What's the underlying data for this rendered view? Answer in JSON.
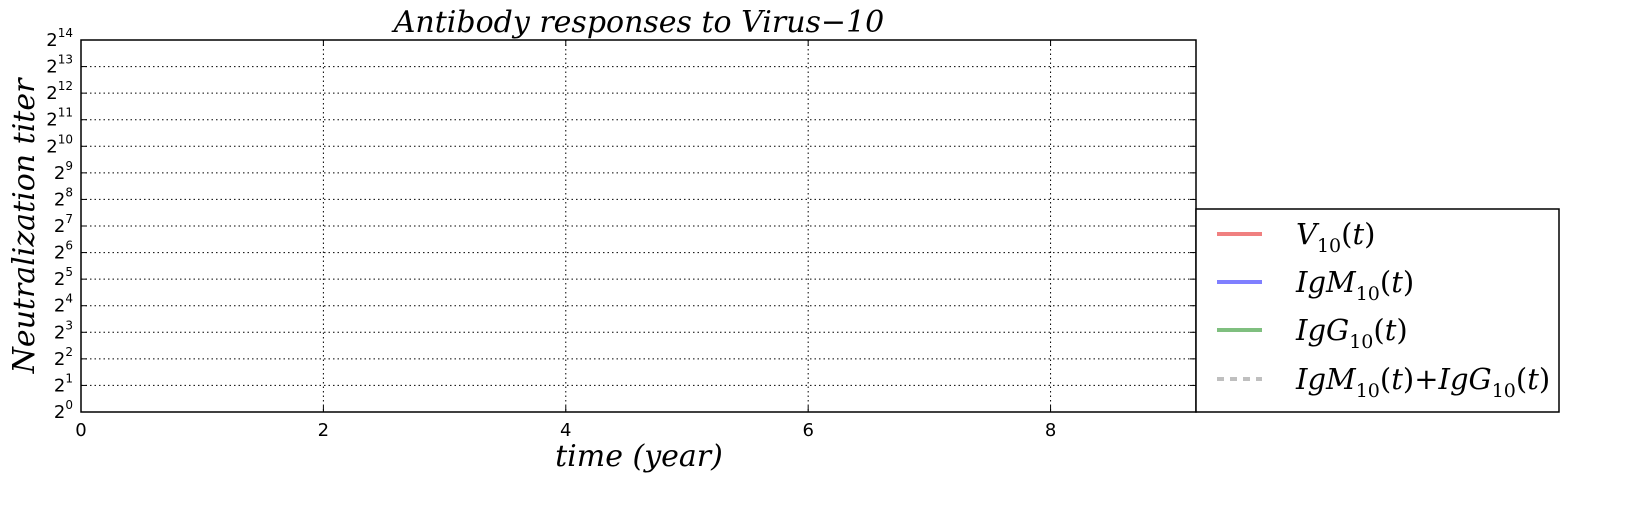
{
  "chart_data": {
    "type": "line",
    "title": "Antibody responses to Virus−10",
    "xlabel": "time (year)",
    "ylabel": "Neutralization  titer",
    "xlim": [
      0,
      9.2
    ],
    "ylim": [
      1,
      16384
    ],
    "y_scale": "log2",
    "x_ticks": [
      {
        "value": 0,
        "label": "0"
      },
      {
        "value": 2,
        "label": "2"
      },
      {
        "value": 4,
        "label": "4"
      },
      {
        "value": 6,
        "label": "6"
      },
      {
        "value": 8,
        "label": "8"
      }
    ],
    "y_ticks": [
      {
        "value": 1,
        "base": "2",
        "exp": "0"
      },
      {
        "value": 2,
        "base": "2",
        "exp": "1"
      },
      {
        "value": 4,
        "base": "2",
        "exp": "2"
      },
      {
        "value": 8,
        "base": "2",
        "exp": "3"
      },
      {
        "value": 16,
        "base": "2",
        "exp": "4"
      },
      {
        "value": 32,
        "base": "2",
        "exp": "5"
      },
      {
        "value": 64,
        "base": "2",
        "exp": "6"
      },
      {
        "value": 128,
        "base": "2",
        "exp": "7"
      },
      {
        "value": 256,
        "base": "2",
        "exp": "8"
      },
      {
        "value": 512,
        "base": "2",
        "exp": "9"
      },
      {
        "value": 1024,
        "base": "2",
        "exp": "10"
      },
      {
        "value": 2048,
        "base": "2",
        "exp": "11"
      },
      {
        "value": 4096,
        "base": "2",
        "exp": "12"
      },
      {
        "value": 8192,
        "base": "2",
        "exp": "13"
      },
      {
        "value": 16384,
        "base": "2",
        "exp": "14"
      }
    ],
    "grid": true,
    "legend_position": "outside right, bottom",
    "series": [
      {
        "name": "V10(t)",
        "color": "#f08080",
        "line_style": "solid",
        "x": [],
        "y": []
      },
      {
        "name": "IgM10(t)",
        "color": "#7f7fff",
        "line_style": "solid",
        "x": [],
        "y": []
      },
      {
        "name": "IgG10(t)",
        "color": "#7fbf7f",
        "line_style": "solid",
        "x": [],
        "y": []
      },
      {
        "name": "IgM10(t)+IgG10(t)",
        "color": "#bfbfbf",
        "line_style": "dotted",
        "x": [],
        "y": []
      }
    ]
  },
  "legend": {
    "entries": [
      {
        "color": "#f08080",
        "dash": "solid",
        "parts": [
          [
            "V",
            "i"
          ],
          [
            "10",
            "s"
          ],
          [
            "(",
            "u"
          ],
          [
            "t",
            "i"
          ],
          [
            ")",
            "u"
          ]
        ]
      },
      {
        "color": "#7f7fff",
        "dash": "solid",
        "parts": [
          [
            "IgM",
            "i"
          ],
          [
            "10",
            "s"
          ],
          [
            "(",
            "u"
          ],
          [
            "t",
            "i"
          ],
          [
            ")",
            "u"
          ]
        ]
      },
      {
        "color": "#7fbf7f",
        "dash": "solid",
        "parts": [
          [
            "IgG",
            "i"
          ],
          [
            "10",
            "s"
          ],
          [
            "(",
            "u"
          ],
          [
            "t",
            "i"
          ],
          [
            ")",
            "u"
          ]
        ]
      },
      {
        "color": "#bfbfbf",
        "dash": "dotted",
        "parts": [
          [
            "IgM",
            "i"
          ],
          [
            "10",
            "s"
          ],
          [
            "(",
            "u"
          ],
          [
            "t",
            "i"
          ],
          [
            ")",
            "u"
          ],
          [
            "+",
            "u"
          ],
          [
            "IgG",
            "i"
          ],
          [
            "10",
            "s"
          ],
          [
            "(",
            "u"
          ],
          [
            "t",
            "i"
          ],
          [
            ")",
            "u"
          ]
        ]
      }
    ]
  }
}
